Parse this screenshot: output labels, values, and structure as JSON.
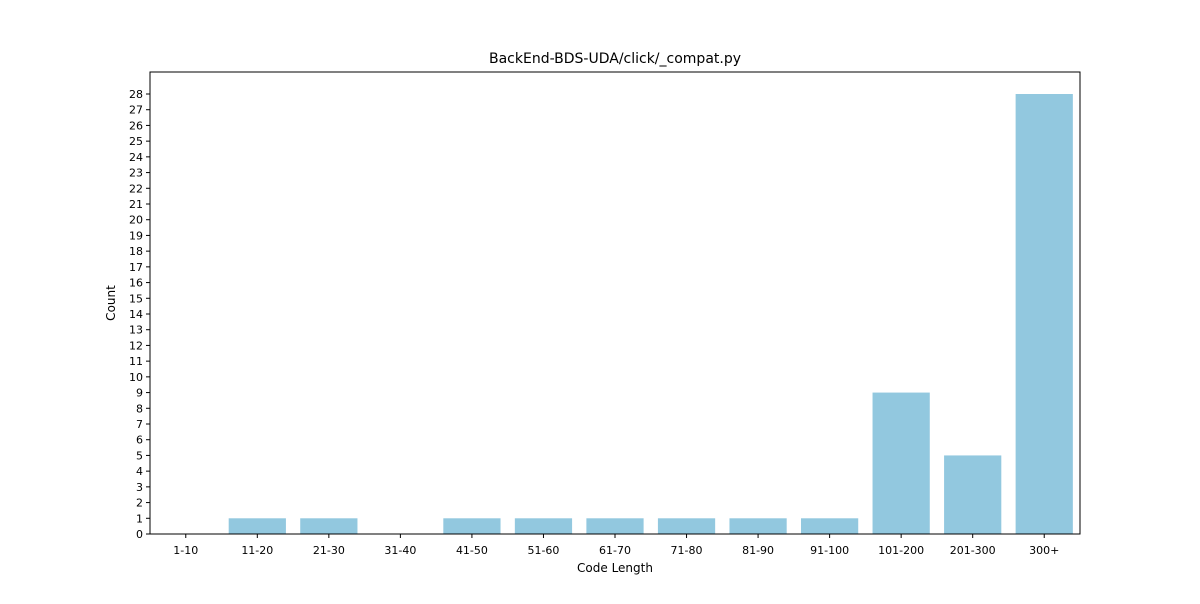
{
  "chart_data": {
    "type": "bar",
    "title": "BackEnd-BDS-UDA/click/_compat.py",
    "xlabel": "Code Length",
    "ylabel": "Count",
    "categories": [
      "1-10",
      "11-20",
      "21-30",
      "31-40",
      "41-50",
      "51-60",
      "61-70",
      "71-80",
      "81-90",
      "91-100",
      "101-200",
      "201-300",
      "300+"
    ],
    "values": [
      0,
      1,
      1,
      0,
      1,
      1,
      1,
      1,
      1,
      1,
      9,
      5,
      28
    ],
    "ylim": [
      0,
      29.4
    ],
    "yticks": [
      0,
      1,
      2,
      3,
      4,
      5,
      6,
      7,
      8,
      9,
      10,
      11,
      12,
      13,
      14,
      15,
      16,
      17,
      18,
      19,
      20,
      21,
      22,
      23,
      24,
      25,
      26,
      27,
      28
    ],
    "grid": false,
    "bar_color": "#92c8df"
  }
}
